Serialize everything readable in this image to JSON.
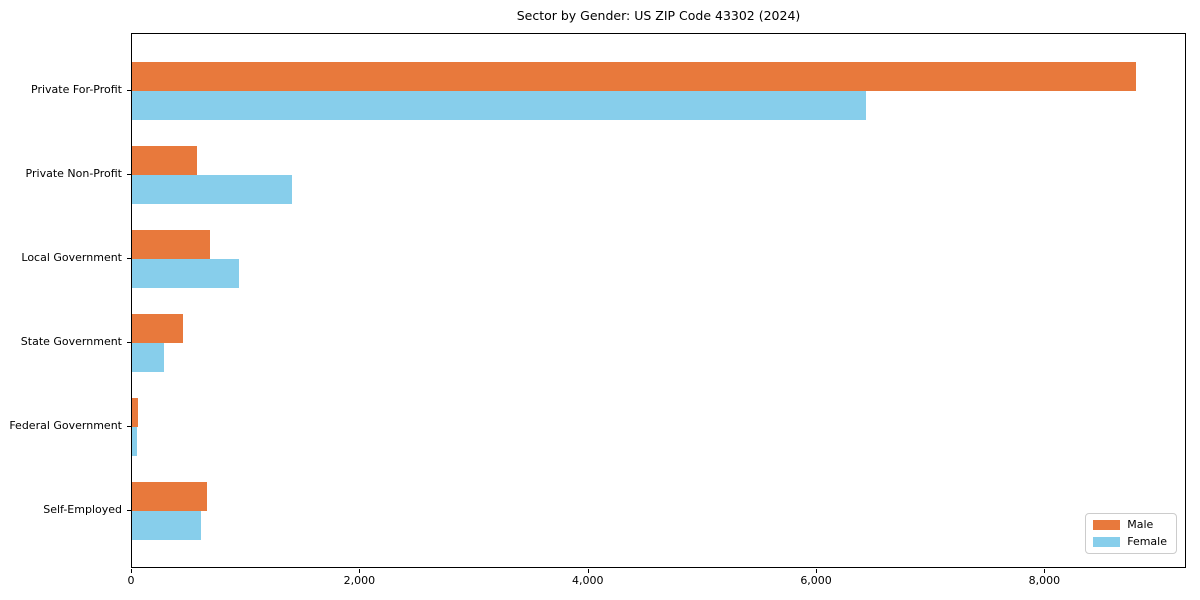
{
  "chart_data": {
    "type": "bar",
    "orientation": "horizontal",
    "title": "Sector by Gender: US ZIP Code 43302 (2024)",
    "categories": [
      "Private For-Profit",
      "Private Non-Profit",
      "Local Government",
      "State Government",
      "Federal Government",
      "Self-Employed"
    ],
    "series": [
      {
        "name": "Male",
        "color": "#E8793C",
        "values": [
          8790,
          570,
          685,
          445,
          53,
          655
        ]
      },
      {
        "name": "Female",
        "color": "#87CEEB",
        "values": [
          6430,
          1400,
          935,
          280,
          44,
          605
        ]
      }
    ],
    "xlabel": "",
    "ylabel": "",
    "xlim": [
      0,
      9240
    ],
    "xticks": [
      0,
      2000,
      4000,
      6000,
      8000
    ],
    "xtick_labels": [
      "0",
      "2,000",
      "4,000",
      "6,000",
      "8,000"
    ],
    "grid": false,
    "legend_position": "lower right",
    "plot_border_color": "#000000",
    "background_color": "#ffffff"
  }
}
